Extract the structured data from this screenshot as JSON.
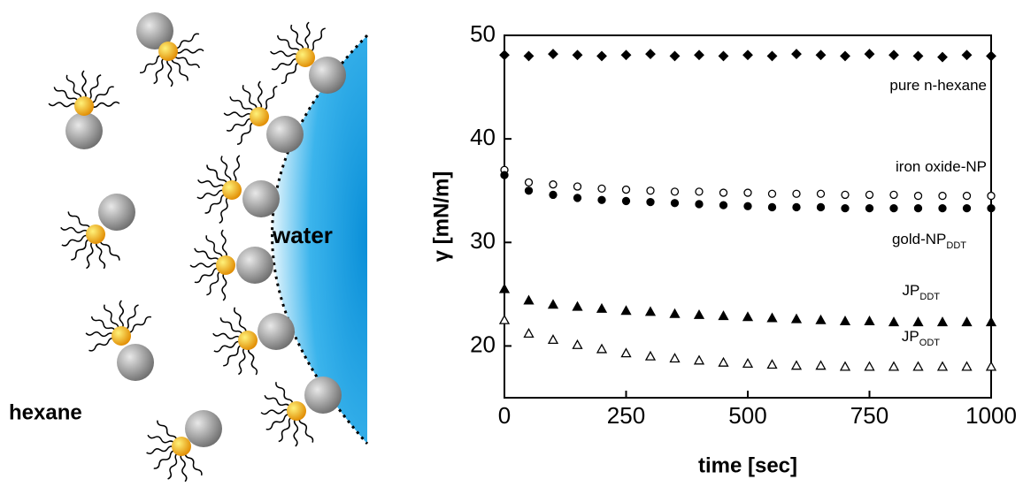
{
  "diagram": {
    "labels": [
      "hexane",
      "water"
    ]
  },
  "chart_data": {
    "type": "scatter",
    "xlabel": "time [sec]",
    "ylabel": "γ [mN/m]",
    "xlim": [
      0,
      1000
    ],
    "xticks": [
      0,
      250,
      500,
      750,
      1000
    ],
    "ylim": [
      15,
      50
    ],
    "yticks": [
      20,
      30,
      40,
      50
    ],
    "x": [
      0,
      50,
      100,
      150,
      200,
      250,
      300,
      350,
      400,
      450,
      500,
      550,
      600,
      650,
      700,
      750,
      800,
      850,
      900,
      950,
      1000
    ],
    "series": [
      {
        "name": "pure n-hexane",
        "color": "#000000",
        "marker": "diamond",
        "values": [
          48.1,
          48.0,
          48.2,
          48.1,
          48.0,
          48.1,
          48.2,
          48.0,
          48.1,
          48.0,
          48.1,
          48.0,
          48.2,
          48.1,
          48.0,
          48.2,
          48.1,
          48.0,
          47.9,
          48.1,
          48.0
        ]
      },
      {
        "name": "iron oxide-NP",
        "color": "#000000",
        "marker": "circle-open",
        "values": [
          37.0,
          35.8,
          35.6,
          35.4,
          35.2,
          35.1,
          35.0,
          34.9,
          34.9,
          34.8,
          34.8,
          34.7,
          34.7,
          34.7,
          34.6,
          34.6,
          34.6,
          34.5,
          34.5,
          34.5,
          34.5
        ]
      },
      {
        "name": "gold-NP",
        "name_sub": "DDT",
        "color": "#000000",
        "marker": "circle",
        "values": [
          36.5,
          35.0,
          34.6,
          34.3,
          34.1,
          34.0,
          33.9,
          33.8,
          33.7,
          33.6,
          33.5,
          33.4,
          33.4,
          33.4,
          33.3,
          33.3,
          33.3,
          33.3,
          33.3,
          33.3,
          33.3
        ]
      },
      {
        "name": "JP",
        "name_sub": "DDT",
        "color": "#000000",
        "marker": "triangle",
        "values": [
          25.5,
          24.4,
          24.0,
          23.8,
          23.6,
          23.4,
          23.3,
          23.1,
          23.0,
          22.9,
          22.8,
          22.7,
          22.6,
          22.5,
          22.4,
          22.4,
          22.3,
          22.3,
          22.3,
          22.3,
          22.3
        ]
      },
      {
        "name": "JP",
        "name_sub": "ODT",
        "color": "#000000",
        "marker": "triangle-open",
        "values": [
          22.5,
          21.2,
          20.6,
          20.1,
          19.7,
          19.3,
          19.0,
          18.8,
          18.6,
          18.4,
          18.3,
          18.2,
          18.1,
          18.1,
          18.0,
          18.0,
          18.0,
          18.0,
          18.0,
          18.0,
          18.0
        ]
      }
    ]
  }
}
